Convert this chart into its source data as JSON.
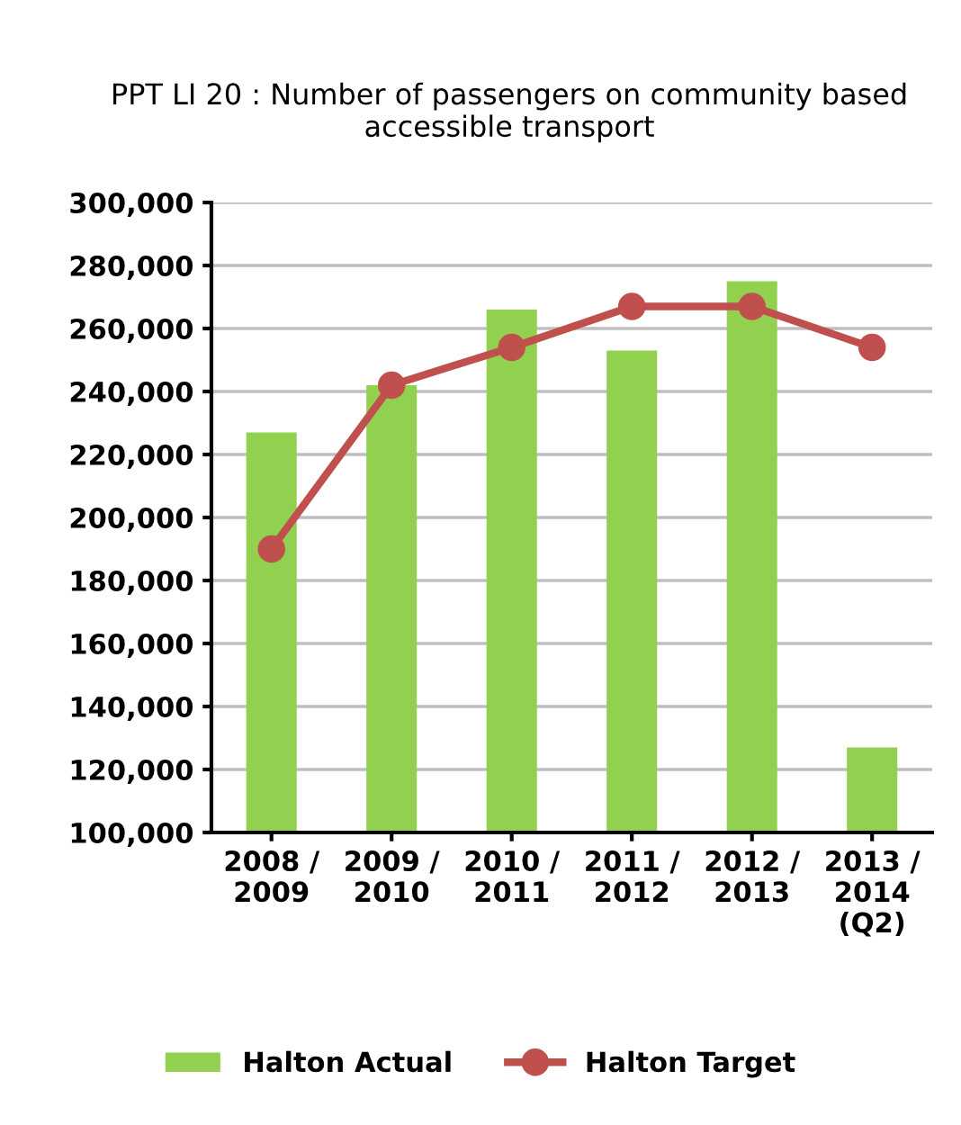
{
  "chart_data": {
    "type": "bar",
    "title": "PPT LI 20 : Number of passengers on community based accessible transport",
    "categories": [
      "2008 /\n2009",
      "2009 /\n2010",
      "2010 /\n2011",
      "2011 /\n2012",
      "2012 /\n2013",
      "2013 /\n2014\n(Q2)"
    ],
    "series": [
      {
        "name": "Halton Actual",
        "color": "#92d050",
        "values": [
          227000,
          242000,
          266000,
          253000,
          275000,
          127000
        ]
      },
      {
        "name": "Halton Target",
        "type": "line",
        "color": "#c0504d",
        "values": [
          190000,
          242000,
          254000,
          267000,
          267000,
          254000
        ]
      }
    ],
    "ylim": [
      100000,
      300000
    ],
    "yticks": [
      {
        "value": 100000,
        "label": "100,000"
      },
      {
        "value": 120000,
        "label": "120,000"
      },
      {
        "value": 140000,
        "label": "140,000"
      },
      {
        "value": 160000,
        "label": "160,000"
      },
      {
        "value": 180000,
        "label": "180,000"
      },
      {
        "value": 200000,
        "label": "200,000"
      },
      {
        "value": 220000,
        "label": "220,000"
      },
      {
        "value": 240000,
        "label": "240,000"
      },
      {
        "value": 260000,
        "label": "260,000"
      },
      {
        "value": 280000,
        "label": "280,000"
      },
      {
        "value": 300000,
        "label": "300,000"
      }
    ],
    "grid": "y",
    "legend": "bottom",
    "marker": "circle"
  }
}
